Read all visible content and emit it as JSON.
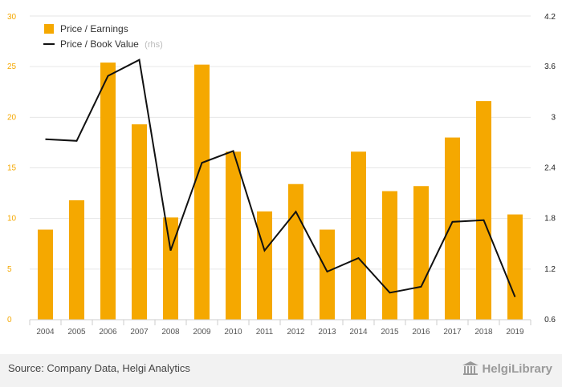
{
  "chart_data": {
    "type": "bar+line",
    "categories": [
      "2004",
      "2005",
      "2006",
      "2007",
      "2008",
      "2009",
      "2010",
      "2011",
      "2012",
      "2013",
      "2014",
      "2015",
      "2016",
      "2017",
      "2018",
      "2019"
    ],
    "series": [
      {
        "name": "Price / Earnings",
        "type": "bar",
        "axis": "left",
        "color": "#f5a800",
        "values": [
          8.9,
          11.8,
          25.4,
          19.3,
          10.1,
          25.2,
          16.6,
          10.7,
          13.4,
          8.9,
          16.6,
          12.7,
          13.2,
          18.0,
          21.6,
          10.4
        ]
      },
      {
        "name": "Price / Book Value",
        "name_suffix": "(rhs)",
        "type": "line",
        "axis": "right",
        "color": "#111111",
        "values": [
          2.74,
          2.72,
          3.49,
          3.68,
          1.42,
          2.46,
          2.6,
          1.42,
          1.88,
          1.17,
          1.33,
          0.92,
          0.99,
          1.76,
          1.78,
          0.87
        ]
      }
    ],
    "y_left": {
      "min": 0,
      "max": 30,
      "ticks": [
        "0",
        "5",
        "10",
        "15",
        "20",
        "25",
        "30"
      ],
      "color": "#f5a800"
    },
    "y_right": {
      "min": 0.6,
      "max": 4.2,
      "ticks": [
        "0.6",
        "1.2",
        "1.8",
        "2.4",
        "3",
        "3.6",
        "4.2"
      ],
      "color": "#222222"
    },
    "grid": true,
    "legend_position": "top-left"
  },
  "footer": {
    "source": "Source: Company Data, Helgi Analytics",
    "brand": "HelgiLibrary"
  }
}
